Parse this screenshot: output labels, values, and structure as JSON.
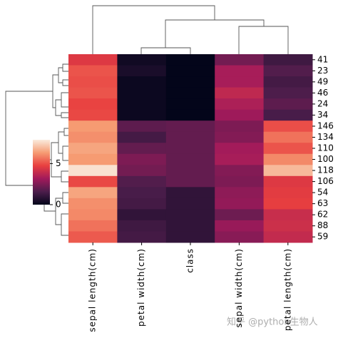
{
  "chart_data": {
    "type": "heatmap",
    "x_categories": [
      "sepal length(cm)",
      "petal width(cm)",
      "class",
      "sepal width(cm)",
      "petal length(cm)"
    ],
    "y_categories": [
      "41",
      "23",
      "49",
      "46",
      "24",
      "34",
      "146",
      "134",
      "110",
      "100",
      "118",
      "106",
      "54",
      "63",
      "62",
      "88",
      "59"
    ],
    "values": [
      [
        4.5,
        0.3,
        0,
        2.3,
        1.3
      ],
      [
        5.1,
        0.5,
        0,
        3.3,
        1.7
      ],
      [
        5.0,
        0.2,
        0,
        3.3,
        1.4
      ],
      [
        5.1,
        0.2,
        0,
        3.8,
        1.6
      ],
      [
        4.8,
        0.2,
        0,
        3.4,
        1.9
      ],
      [
        4.9,
        0.2,
        0,
        3.1,
        1.5
      ],
      [
        6.3,
        1.9,
        2,
        2.5,
        5.0
      ],
      [
        6.1,
        1.4,
        2,
        2.6,
        5.6
      ],
      [
        6.5,
        2.0,
        2,
        3.2,
        5.1
      ],
      [
        6.3,
        2.5,
        2,
        3.3,
        6.0
      ],
      [
        7.7,
        2.3,
        2,
        2.6,
        6.9
      ],
      [
        4.9,
        1.7,
        2,
        2.5,
        4.5
      ],
      [
        6.5,
        1.5,
        1,
        2.8,
        4.6
      ],
      [
        6.1,
        1.4,
        1,
        2.9,
        4.7
      ],
      [
        6.0,
        1.0,
        1,
        2.2,
        4.0
      ],
      [
        5.6,
        1.3,
        1,
        3.0,
        4.1
      ],
      [
        5.2,
        1.4,
        1,
        2.7,
        3.9
      ]
    ],
    "colormap": [
      "#03051a",
      "#4c1d4b",
      "#a11a5b",
      "#e83f3f",
      "#f69c73",
      "#faebdd"
    ],
    "clim": [
      0,
      7.9
    ],
    "colorbar_ticks": [
      0,
      5
    ],
    "watermark": "知乎 @python生物人"
  }
}
